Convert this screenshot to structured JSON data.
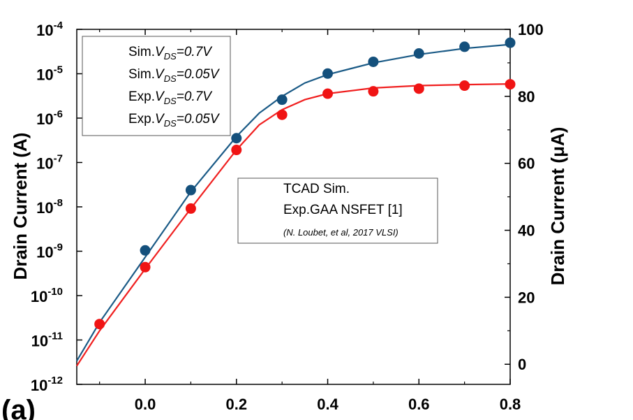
{
  "chart_data": {
    "type": "line",
    "panel_label": "(a)",
    "xlabel": "",
    "ylabel": "Drain Current (A)",
    "y2label": "Drain Current (μA)",
    "xlim": [
      -0.15,
      0.8
    ],
    "ylim_log": [
      -12,
      -4
    ],
    "y2lim": [
      -6,
      100
    ],
    "x_ticks": [
      "0.0",
      "0.2",
      "0.4",
      "0.6",
      "0.8"
    ],
    "x_tick_values": [
      0.0,
      0.2,
      0.4,
      0.6,
      0.8
    ],
    "y_ticks": [
      {
        "base": "10",
        "exp": "-4",
        "value": -4
      },
      {
        "base": "10",
        "exp": "-5",
        "value": -5
      },
      {
        "base": "10",
        "exp": "-6",
        "value": -6
      },
      {
        "base": "10",
        "exp": "-7",
        "value": -7
      },
      {
        "base": "10",
        "exp": "-8",
        "value": -8
      },
      {
        "base": "10",
        "exp": "-9",
        "value": -9
      },
      {
        "base": "10",
        "exp": "-10",
        "value": -10
      },
      {
        "base": "10",
        "exp": "-11",
        "value": -11
      },
      {
        "base": "10",
        "exp": "-12",
        "value": -12
      }
    ],
    "y2_ticks": [
      "100",
      "80",
      "60",
      "40",
      "20",
      "0"
    ],
    "y2_tick_values": [
      100,
      80,
      60,
      40,
      20,
      0
    ],
    "legend1": {
      "entries": [
        {
          "prefix": "Sim.",
          "vds": "=0.7V"
        },
        {
          "prefix": "Sim.",
          "vds": "=0.05V"
        },
        {
          "prefix": "Exp.",
          "vds": "=0.7V"
        },
        {
          "prefix": "Exp.",
          "vds": "=0.05V"
        }
      ],
      "v_symbol": "V",
      "v_subscript": "DS"
    },
    "legend2": {
      "line1": "TCAD Sim.",
      "line2": "Exp.GAA NSFET [1]",
      "citation": "(N. Loubet, et al, 2017 VLSI)"
    },
    "series": [
      {
        "role": "sim_high",
        "color": "#1a5a86",
        "axis": "right",
        "x": [
          -0.15,
          -0.1,
          0.0,
          0.1,
          0.2,
          0.25,
          0.3,
          0.35,
          0.4,
          0.5,
          0.6,
          0.7,
          0.8
        ],
        "y": [
          1.0,
          12.5,
          32.0,
          51.5,
          68.0,
          75.0,
          80.0,
          84.0,
          86.5,
          90.0,
          92.5,
          94.3,
          95.5
        ]
      },
      {
        "role": "sim_low",
        "color": "#f02020",
        "axis": "right",
        "x": [
          -0.15,
          -0.1,
          0.0,
          0.1,
          0.2,
          0.25,
          0.3,
          0.35,
          0.4,
          0.5,
          0.6,
          0.7,
          0.8
        ],
        "y": [
          -0.5,
          10.0,
          28.5,
          46.5,
          64.0,
          71.5,
          76.0,
          79.0,
          80.8,
          82.5,
          83.2,
          83.5,
          83.7
        ]
      },
      {
        "role": "exp_high",
        "color": "#14507c",
        "axis": "right",
        "x": [
          0.0,
          0.1,
          0.2,
          0.3,
          0.4,
          0.5,
          0.6,
          0.7,
          0.8
        ],
        "y": [
          34.0,
          52.0,
          67.5,
          79.0,
          86.8,
          90.3,
          92.8,
          94.8,
          96.0
        ]
      },
      {
        "role": "exp_low",
        "color": "#f01414",
        "axis": "right",
        "x": [
          -0.1,
          0.0,
          0.1,
          0.2,
          0.3,
          0.4,
          0.5,
          0.6,
          0.7,
          0.8
        ],
        "y": [
          12.0,
          29.0,
          46.5,
          64.0,
          74.5,
          80.8,
          81.5,
          82.3,
          83.2,
          83.6
        ]
      }
    ],
    "grid": false
  }
}
